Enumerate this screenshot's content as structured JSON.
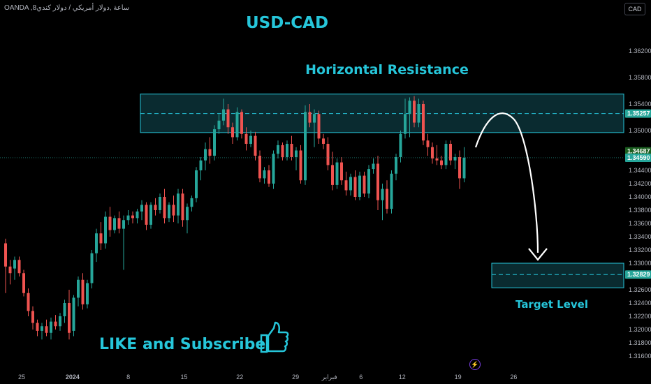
{
  "symbol_line": "OANDA ,8ساعة ,دولار أمريكي / دولار كندي",
  "currency_button": "CAD",
  "colors": {
    "background": "#000000",
    "up": "#26a69a",
    "down": "#ef5350",
    "annotation": "#26c6da",
    "zone_fill": "#0e3a40",
    "price_line": "#26a69a"
  },
  "icons": {
    "bolt": "lightning-icon",
    "like": "thumbs-up-icon"
  },
  "bolt_glyph": "⚡",
  "chart_data": {
    "type": "candlestick",
    "title": "USD-CAD",
    "xlabel": "",
    "ylabel": "",
    "ylim": [
      1.316,
      1.364
    ],
    "y_ticks": [
      "1.36200",
      "1.35800",
      "1.35400",
      "1.35000",
      "1.34400",
      "1.34200",
      "1.34000",
      "1.33800",
      "1.33600",
      "1.33400",
      "1.33200",
      "1.33000",
      "1.32600",
      "1.32400",
      "1.32200",
      "1.32000",
      "1.31800",
      "1.31600"
    ],
    "x_tick_labels": [
      {
        "label": "25",
        "x": 0
      },
      {
        "label": "2024",
        "x": 21
      },
      {
        "label": "8",
        "x": 44
      },
      {
        "label": "15",
        "x": 67
      },
      {
        "label": "22",
        "x": 90
      },
      {
        "label": "29",
        "x": 113
      },
      {
        "label": "فبراير",
        "x": 127
      },
      {
        "label": "6",
        "x": 140
      },
      {
        "label": "12",
        "x": 157
      },
      {
        "label": "19",
        "x": 180
      },
      {
        "label": "26",
        "x": 203
      }
    ],
    "price_labels": [
      {
        "value": "1.35257",
        "price": 1.35257
      },
      {
        "value": "1.34687",
        "price": 1.34687
      },
      {
        "value": "1.34590",
        "price": 1.3459
      },
      {
        "value": "1.32829",
        "price": 1.32829
      }
    ],
    "zones": [
      {
        "label": "Horizontal Resistance",
        "top": 1.3555,
        "bottom": 1.3497,
        "mid": 1.35257,
        "x_start": 44,
        "x_end": 203
      },
      {
        "label": "Target Level",
        "top": 1.33,
        "bottom": 1.3263,
        "mid": 1.32829,
        "x_start": 161,
        "x_end": 203
      }
    ],
    "annotations": [
      "LIKE and Subscribe"
    ],
    "candles": [
      {
        "o": 1.333,
        "h": 1.3337,
        "l": 1.3255,
        "c": 1.3295
      },
      {
        "o": 1.3295,
        "h": 1.3305,
        "l": 1.3268,
        "c": 1.3285
      },
      {
        "o": 1.3292,
        "h": 1.331,
        "l": 1.3275,
        "c": 1.3305
      },
      {
        "o": 1.3305,
        "h": 1.331,
        "l": 1.328,
        "c": 1.3285
      },
      {
        "o": 1.3285,
        "h": 1.329,
        "l": 1.325,
        "c": 1.3255
      },
      {
        "o": 1.3255,
        "h": 1.3262,
        "l": 1.322,
        "c": 1.3228
      },
      {
        "o": 1.3228,
        "h": 1.3235,
        "l": 1.32,
        "c": 1.321
      },
      {
        "o": 1.321,
        "h": 1.3215,
        "l": 1.319,
        "c": 1.3198
      },
      {
        "o": 1.3198,
        "h": 1.321,
        "l": 1.3185,
        "c": 1.3205
      },
      {
        "o": 1.3205,
        "h": 1.3215,
        "l": 1.319,
        "c": 1.3195
      },
      {
        "o": 1.3195,
        "h": 1.3218,
        "l": 1.3185,
        "c": 1.3212
      },
      {
        "o": 1.3212,
        "h": 1.3222,
        "l": 1.32,
        "c": 1.3205
      },
      {
        "o": 1.3205,
        "h": 1.3225,
        "l": 1.3198,
        "c": 1.322
      },
      {
        "o": 1.322,
        "h": 1.3245,
        "l": 1.321,
        "c": 1.324
      },
      {
        "o": 1.324,
        "h": 1.326,
        "l": 1.3185,
        "c": 1.3195
      },
      {
        "o": 1.3198,
        "h": 1.3252,
        "l": 1.319,
        "c": 1.3248
      },
      {
        "o": 1.3248,
        "h": 1.328,
        "l": 1.3235,
        "c": 1.3275
      },
      {
        "o": 1.3275,
        "h": 1.3285,
        "l": 1.323,
        "c": 1.3238
      },
      {
        "o": 1.3238,
        "h": 1.3275,
        "l": 1.3232,
        "c": 1.327
      },
      {
        "o": 1.327,
        "h": 1.332,
        "l": 1.3262,
        "c": 1.3315
      },
      {
        "o": 1.3315,
        "h": 1.3352,
        "l": 1.3302,
        "c": 1.3345
      },
      {
        "o": 1.3345,
        "h": 1.3362,
        "l": 1.332,
        "c": 1.333
      },
      {
        "o": 1.333,
        "h": 1.3378,
        "l": 1.3322,
        "c": 1.337
      },
      {
        "o": 1.337,
        "h": 1.3385,
        "l": 1.334,
        "c": 1.335
      },
      {
        "o": 1.335,
        "h": 1.3372,
        "l": 1.3345,
        "c": 1.3368
      },
      {
        "o": 1.3368,
        "h": 1.3378,
        "l": 1.3345,
        "c": 1.3352
      },
      {
        "o": 1.3352,
        "h": 1.3372,
        "l": 1.329,
        "c": 1.3365
      },
      {
        "o": 1.3365,
        "h": 1.338,
        "l": 1.3358,
        "c": 1.3372
      },
      {
        "o": 1.3372,
        "h": 1.3378,
        "l": 1.336,
        "c": 1.3368
      },
      {
        "o": 1.3368,
        "h": 1.3382,
        "l": 1.336,
        "c": 1.3378
      },
      {
        "o": 1.3378,
        "h": 1.3395,
        "l": 1.3365,
        "c": 1.3388
      },
      {
        "o": 1.3388,
        "h": 1.3392,
        "l": 1.335,
        "c": 1.3358
      },
      {
        "o": 1.3358,
        "h": 1.3392,
        "l": 1.3352,
        "c": 1.3388
      },
      {
        "o": 1.3388,
        "h": 1.3398,
        "l": 1.3372,
        "c": 1.338
      },
      {
        "o": 1.338,
        "h": 1.3405,
        "l": 1.3375,
        "c": 1.34
      },
      {
        "o": 1.34,
        "h": 1.3412,
        "l": 1.336,
        "c": 1.3368
      },
      {
        "o": 1.3368,
        "h": 1.3392,
        "l": 1.3362,
        "c": 1.3388
      },
      {
        "o": 1.3388,
        "h": 1.3402,
        "l": 1.3362,
        "c": 1.3372
      },
      {
        "o": 1.3372,
        "h": 1.3412,
        "l": 1.336,
        "c": 1.3405
      },
      {
        "o": 1.3405,
        "h": 1.3412,
        "l": 1.3355,
        "c": 1.3365
      },
      {
        "o": 1.3365,
        "h": 1.339,
        "l": 1.3345,
        "c": 1.3385
      },
      {
        "o": 1.3385,
        "h": 1.3402,
        "l": 1.3378,
        "c": 1.3398
      },
      {
        "o": 1.3398,
        "h": 1.3445,
        "l": 1.3392,
        "c": 1.344
      },
      {
        "o": 1.344,
        "h": 1.346,
        "l": 1.3425,
        "c": 1.3455
      },
      {
        "o": 1.3455,
        "h": 1.3482,
        "l": 1.344,
        "c": 1.3472
      },
      {
        "o": 1.3472,
        "h": 1.349,
        "l": 1.345,
        "c": 1.3462
      },
      {
        "o": 1.3462,
        "h": 1.3508,
        "l": 1.3455,
        "c": 1.3502
      },
      {
        "o": 1.3502,
        "h": 1.3525,
        "l": 1.3495,
        "c": 1.3515
      },
      {
        "o": 1.3515,
        "h": 1.3548,
        "l": 1.3508,
        "c": 1.3532
      },
      {
        "o": 1.3532,
        "h": 1.354,
        "l": 1.3495,
        "c": 1.3505
      },
      {
        "o": 1.3505,
        "h": 1.3512,
        "l": 1.348,
        "c": 1.349
      },
      {
        "o": 1.349,
        "h": 1.3535,
        "l": 1.3485,
        "c": 1.3528
      },
      {
        "o": 1.3528,
        "h": 1.3532,
        "l": 1.3488,
        "c": 1.3495
      },
      {
        "o": 1.3495,
        "h": 1.3505,
        "l": 1.347,
        "c": 1.348
      },
      {
        "o": 1.348,
        "h": 1.35,
        "l": 1.3475,
        "c": 1.3492
      },
      {
        "o": 1.3492,
        "h": 1.3498,
        "l": 1.3455,
        "c": 1.3462
      },
      {
        "o": 1.3462,
        "h": 1.347,
        "l": 1.3422,
        "c": 1.3428
      },
      {
        "o": 1.3428,
        "h": 1.3445,
        "l": 1.342,
        "c": 1.344
      },
      {
        "o": 1.344,
        "h": 1.3448,
        "l": 1.3415,
        "c": 1.342
      },
      {
        "o": 1.342,
        "h": 1.347,
        "l": 1.3412,
        "c": 1.3465
      },
      {
        "o": 1.3465,
        "h": 1.3485,
        "l": 1.3458,
        "c": 1.3478
      },
      {
        "o": 1.3478,
        "h": 1.3482,
        "l": 1.3455,
        "c": 1.346
      },
      {
        "o": 1.346,
        "h": 1.3485,
        "l": 1.3455,
        "c": 1.348
      },
      {
        "o": 1.348,
        "h": 1.3492,
        "l": 1.3455,
        "c": 1.346
      },
      {
        "o": 1.346,
        "h": 1.3475,
        "l": 1.344,
        "c": 1.347
      },
      {
        "o": 1.347,
        "h": 1.3478,
        "l": 1.342,
        "c": 1.3425
      },
      {
        "o": 1.3425,
        "h": 1.3538,
        "l": 1.3418,
        "c": 1.3528
      },
      {
        "o": 1.3528,
        "h": 1.354,
        "l": 1.3505,
        "c": 1.3512
      },
      {
        "o": 1.3512,
        "h": 1.3532,
        "l": 1.3475,
        "c": 1.3525
      },
      {
        "o": 1.3525,
        "h": 1.353,
        "l": 1.348,
        "c": 1.3488
      },
      {
        "o": 1.3488,
        "h": 1.3495,
        "l": 1.3472,
        "c": 1.348
      },
      {
        "o": 1.348,
        "h": 1.349,
        "l": 1.344,
        "c": 1.3448
      },
      {
        "o": 1.3448,
        "h": 1.3468,
        "l": 1.341,
        "c": 1.3418
      },
      {
        "o": 1.3418,
        "h": 1.3458,
        "l": 1.3412,
        "c": 1.3452
      },
      {
        "o": 1.3452,
        "h": 1.346,
        "l": 1.3418,
        "c": 1.3425
      },
      {
        "o": 1.3425,
        "h": 1.3438,
        "l": 1.3402,
        "c": 1.341
      },
      {
        "o": 1.341,
        "h": 1.3435,
        "l": 1.3402,
        "c": 1.343
      },
      {
        "o": 1.343,
        "h": 1.344,
        "l": 1.3395,
        "c": 1.34
      },
      {
        "o": 1.34,
        "h": 1.3438,
        "l": 1.3395,
        "c": 1.3432
      },
      {
        "o": 1.3432,
        "h": 1.3438,
        "l": 1.34,
        "c": 1.3405
      },
      {
        "o": 1.3405,
        "h": 1.3448,
        "l": 1.3398,
        "c": 1.3442
      },
      {
        "o": 1.3442,
        "h": 1.3458,
        "l": 1.3435,
        "c": 1.345
      },
      {
        "o": 1.345,
        "h": 1.3462,
        "l": 1.338,
        "c": 1.3395
      },
      {
        "o": 1.3395,
        "h": 1.342,
        "l": 1.3365,
        "c": 1.3412
      },
      {
        "o": 1.3412,
        "h": 1.3425,
        "l": 1.3375,
        "c": 1.3382
      },
      {
        "o": 1.3382,
        "h": 1.344,
        "l": 1.3375,
        "c": 1.3435
      },
      {
        "o": 1.3435,
        "h": 1.3465,
        "l": 1.3425,
        "c": 1.346
      },
      {
        "o": 1.346,
        "h": 1.35,
        "l": 1.3452,
        "c": 1.3495
      },
      {
        "o": 1.3495,
        "h": 1.3548,
        "l": 1.3488,
        "c": 1.3525
      },
      {
        "o": 1.3525,
        "h": 1.355,
        "l": 1.349,
        "c": 1.3545
      },
      {
        "o": 1.3545,
        "h": 1.3552,
        "l": 1.3505,
        "c": 1.3512
      },
      {
        "o": 1.3512,
        "h": 1.3548,
        "l": 1.3505,
        "c": 1.354
      },
      {
        "o": 1.354,
        "h": 1.3545,
        "l": 1.3478,
        "c": 1.3485
      },
      {
        "o": 1.3485,
        "h": 1.3495,
        "l": 1.3462,
        "c": 1.3475
      },
      {
        "o": 1.3475,
        "h": 1.3482,
        "l": 1.345,
        "c": 1.3458
      },
      {
        "o": 1.3458,
        "h": 1.3478,
        "l": 1.3448,
        "c": 1.3455
      },
      {
        "o": 1.3455,
        "h": 1.3462,
        "l": 1.3442,
        "c": 1.3448
      },
      {
        "o": 1.3448,
        "h": 1.3485,
        "l": 1.3442,
        "c": 1.348
      },
      {
        "o": 1.348,
        "h": 1.3485,
        "l": 1.3448,
        "c": 1.3455
      },
      {
        "o": 1.3455,
        "h": 1.3465,
        "l": 1.3442,
        "c": 1.346
      },
      {
        "o": 1.346,
        "h": 1.347,
        "l": 1.3412,
        "c": 1.3428
      },
      {
        "o": 1.3428,
        "h": 1.3475,
        "l": 1.3422,
        "c": 1.3459
      }
    ]
  }
}
